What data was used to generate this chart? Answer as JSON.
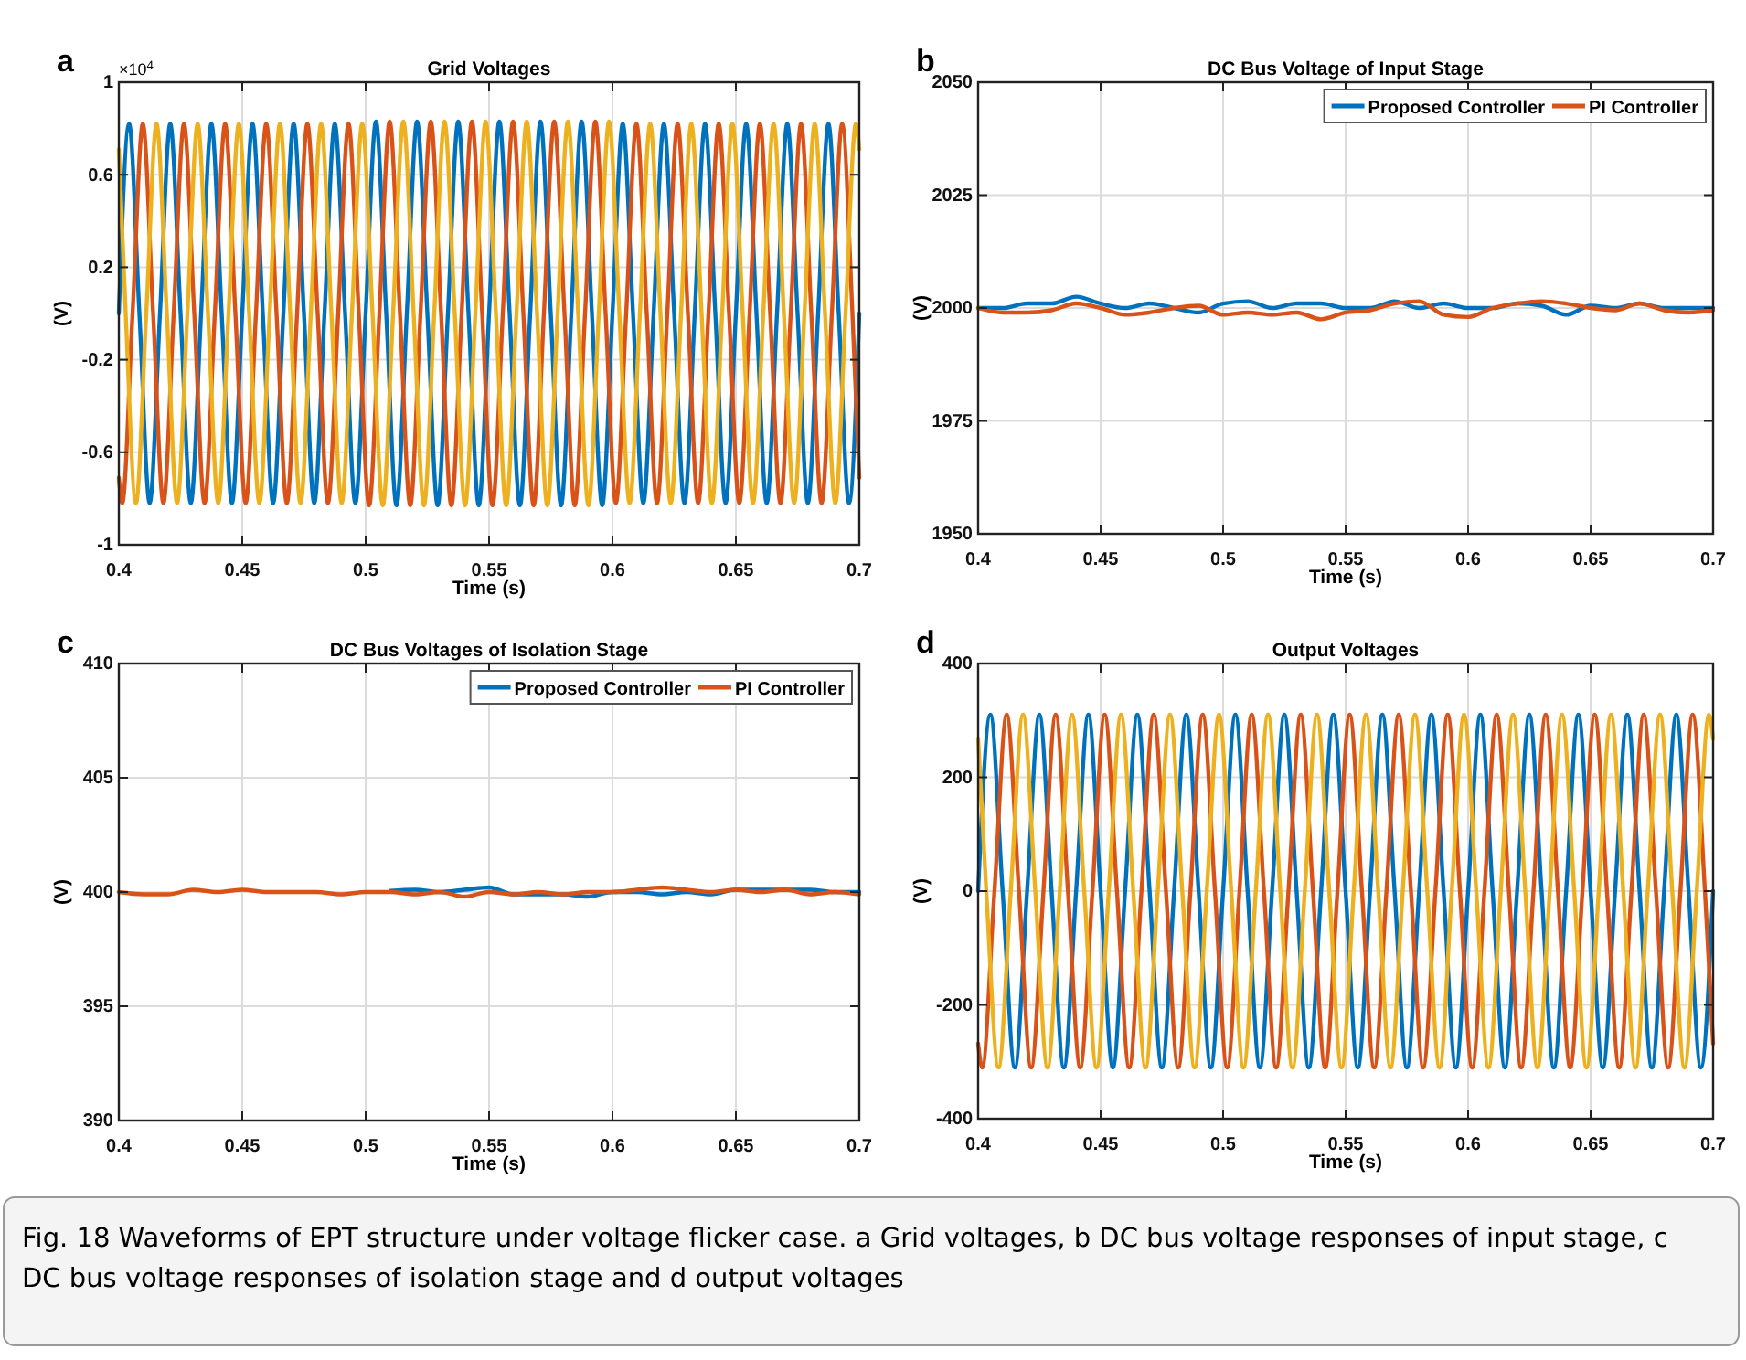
{
  "chart_data": [
    {
      "type": "line",
      "title": "Grid Voltages",
      "xlabel": "Time (s)",
      "ylabel": "(V)",
      "annotations": [
        "a",
        "×10$^{4}$"
      ],
      "xlim": [
        0.4,
        0.7
      ],
      "xticks": [
        0.4,
        0.45,
        0.5,
        0.55,
        0.6,
        0.65,
        0.7
      ],
      "ylim": [
        -1,
        1
      ],
      "yticks": [
        -1,
        -0.6,
        -0.2,
        0.2,
        0.6,
        1
      ],
      "grid": true,
      "series": [
        {
          "color": "#0072bd",
          "x": [
            0.4,
            0.40417,
            0.40833,
            0.4125,
            0.41667,
            0.42083,
            0.425,
            0.42917,
            0.43333,
            0.4375,
            0.44167,
            0.44583,
            0.45,
            0.45417,
            0.45833,
            0.4625,
            0.46667,
            0.47083,
            0.475,
            0.47917,
            0.48333,
            0.4875,
            0.49167,
            0.49583,
            0.5,
            0.50417,
            0.50833,
            0.5125,
            0.51667,
            0.52083,
            0.525,
            0.52917,
            0.53333,
            0.5375,
            0.54167,
            0.54583,
            0.55,
            0.55417,
            0.55833,
            0.5625,
            0.56667,
            0.57083,
            0.575,
            0.57917,
            0.58333,
            0.5875,
            0.59167,
            0.59583,
            0.6,
            0.60417,
            0.60833,
            0.6125,
            0.61667,
            0.62083,
            0.625,
            0.62917,
            0.63333,
            0.6375,
            0.64167,
            0.64583,
            0.65,
            0.65417,
            0.65833,
            0.6625,
            0.66667,
            0.67083,
            0.675,
            0.67917,
            0.68333,
            0.6875,
            0.69167,
            0.69583,
            0.7
          ],
          "values": [
            0,
            0.82,
            0,
            -0.82,
            0,
            0.82,
            0,
            -0.82,
            0,
            0.82,
            0,
            -0.82,
            0,
            0.82,
            0,
            -0.82,
            0,
            0.82,
            0,
            -0.82,
            0,
            0.82,
            0,
            -0.82,
            0,
            0.83,
            0,
            -0.83,
            0,
            0.83,
            0,
            -0.83,
            0,
            0.83,
            0,
            -0.83,
            0,
            0.83,
            0,
            -0.83,
            0,
            0.83,
            0,
            -0.83,
            0,
            0.83,
            0,
            -0.83,
            0,
            0.82,
            0,
            -0.82,
            0,
            0.82,
            0,
            -0.82,
            0,
            0.82,
            0,
            -0.82,
            0,
            0.82,
            0,
            -0.82,
            0,
            0.82,
            0,
            -0.82,
            0,
            0.82,
            0,
            -0.82,
            0
          ]
        },
        {
          "color": "#d95319",
          "x": [
            0.4,
            0.40139,
            0.40556,
            0.40972,
            0.41389,
            0.41806,
            0.42222,
            0.42639,
            0.43056,
            0.43472,
            0.43889,
            0.44306,
            0.44722,
            0.45139,
            0.45556,
            0.45972,
            0.46389,
            0.46806,
            0.47222,
            0.47639,
            0.48056,
            0.48472,
            0.48889,
            0.49306,
            0.49722,
            0.50139,
            0.50556,
            0.50972,
            0.51389,
            0.51806,
            0.52222,
            0.52639,
            0.53056,
            0.53472,
            0.53889,
            0.54306,
            0.54722,
            0.55139,
            0.55556,
            0.55972,
            0.56389,
            0.56806,
            0.57222,
            0.57639,
            0.58056,
            0.58472,
            0.58889,
            0.59306,
            0.59722,
            0.60139,
            0.60556,
            0.60972,
            0.61389,
            0.61806,
            0.62222,
            0.62639,
            0.63056,
            0.63472,
            0.63889,
            0.64306,
            0.64722,
            0.65139,
            0.65556,
            0.65972,
            0.66389,
            0.66806,
            0.67222,
            0.67639,
            0.68056,
            0.68472,
            0.68889,
            0.69306,
            0.69722,
            0.7
          ],
          "values": [
            -0.71,
            -0.82,
            0,
            0.82,
            0,
            -0.82,
            0,
            0.82,
            0,
            -0.82,
            0,
            0.82,
            0,
            -0.82,
            0,
            0.82,
            0,
            -0.82,
            0,
            0.82,
            0,
            -0.82,
            0,
            0.82,
            0,
            -0.83,
            0,
            0.83,
            0,
            -0.83,
            0,
            0.83,
            0,
            -0.83,
            0,
            0.83,
            0,
            -0.83,
            0,
            0.83,
            0,
            -0.83,
            0,
            0.83,
            0,
            -0.83,
            0,
            0.83,
            0,
            -0.82,
            0,
            0.82,
            0,
            -0.82,
            0,
            0.82,
            0,
            -0.82,
            0,
            0.82,
            0,
            -0.82,
            0,
            0.82,
            0,
            -0.82,
            0,
            0.82,
            0,
            -0.82,
            0,
            0.82,
            0,
            -0.71
          ]
        },
        {
          "color": "#edb120",
          "x": [
            0.4,
            0.40278,
            0.40694,
            0.41111,
            0.41528,
            0.41944,
            0.42361,
            0.42778,
            0.43194,
            0.43611,
            0.44028,
            0.44444,
            0.44861,
            0.45278,
            0.45694,
            0.46111,
            0.46528,
            0.46944,
            0.47361,
            0.47778,
            0.48194,
            0.48611,
            0.49028,
            0.49444,
            0.49861,
            0.50278,
            0.50694,
            0.51111,
            0.51528,
            0.51944,
            0.52361,
            0.52778,
            0.53194,
            0.53611,
            0.54028,
            0.54444,
            0.54861,
            0.55278,
            0.55694,
            0.56111,
            0.56528,
            0.56944,
            0.57361,
            0.57778,
            0.58194,
            0.58611,
            0.59028,
            0.59444,
            0.59861,
            0.60278,
            0.60694,
            0.61111,
            0.61528,
            0.61944,
            0.62361,
            0.62778,
            0.63194,
            0.63611,
            0.64028,
            0.64444,
            0.64861,
            0.65278,
            0.65694,
            0.66111,
            0.66528,
            0.66944,
            0.67361,
            0.67778,
            0.68194,
            0.68611,
            0.69028,
            0.69444,
            0.69861,
            0.7
          ],
          "values": [
            0.71,
            0,
            -0.82,
            0,
            0.82,
            0,
            -0.82,
            0,
            0.82,
            0,
            -0.82,
            0,
            0.82,
            0,
            -0.82,
            0,
            0.82,
            0,
            -0.82,
            0,
            0.82,
            0,
            -0.82,
            0,
            0.82,
            0,
            -0.83,
            0,
            0.83,
            0,
            -0.83,
            0,
            0.83,
            0,
            -0.83,
            0,
            0.83,
            0,
            -0.83,
            0,
            0.83,
            0,
            -0.83,
            0,
            0.83,
            0,
            -0.83,
            0,
            0.83,
            0,
            -0.82,
            0,
            0.82,
            0,
            -0.82,
            0,
            0.82,
            0,
            -0.82,
            0,
            0.82,
            0,
            -0.82,
            0,
            0.82,
            0,
            -0.82,
            0,
            0.82,
            0,
            -0.82,
            0,
            0.82,
            0.71
          ]
        }
      ]
    },
    {
      "type": "line",
      "title": "DC Bus Voltage of Input Stage",
      "xlabel": "Time (s)",
      "ylabel": "(V)",
      "annotations": [
        "b"
      ],
      "xlim": [
        0.4,
        0.7
      ],
      "xticks": [
        0.4,
        0.45,
        0.5,
        0.55,
        0.6,
        0.65,
        0.7
      ],
      "ylim": [
        1950,
        2050
      ],
      "yticks": [
        1950,
        1975,
        2000,
        2025,
        2050
      ],
      "grid": true,
      "legend": "top right",
      "x": [
        0.4,
        0.41,
        0.42,
        0.43,
        0.44,
        0.45,
        0.46,
        0.47,
        0.48,
        0.49,
        0.5,
        0.51,
        0.52,
        0.53,
        0.54,
        0.55,
        0.56,
        0.57,
        0.58,
        0.59,
        0.6,
        0.61,
        0.62,
        0.63,
        0.64,
        0.65,
        0.66,
        0.67,
        0.68,
        0.69,
        0.7
      ],
      "series": [
        {
          "name": "Proposed Controller",
          "color": "#0072bd",
          "values": [
            2000,
            2000,
            2001,
            2001,
            2002.5,
            2001,
            2000,
            2001,
            2000,
            1999,
            2001,
            2001.5,
            2000,
            2001,
            2001,
            2000,
            2000,
            2001.5,
            2000,
            2001,
            2000,
            2000,
            2001,
            2000.5,
            1998.5,
            2000.5,
            2000,
            2001,
            2000,
            2000,
            2000
          ]
        },
        {
          "name": "PI Controller",
          "color": "#d95319",
          "values": [
            2000,
            1999,
            1999,
            1999.5,
            2001,
            2000,
            1998.5,
            1999,
            2000,
            2000.5,
            1998.5,
            1999,
            1998.5,
            1999,
            1997.5,
            1999,
            1999.5,
            2001,
            2001.5,
            1998.5,
            1998,
            2000,
            2001,
            2001.5,
            2001,
            2000,
            1999.5,
            2001,
            1999.5,
            1999,
            1999.5
          ]
        }
      ]
    },
    {
      "type": "line",
      "title": "DC Bus Voltages of Isolation Stage",
      "xlabel": "Time (s)",
      "ylabel": "(V)",
      "annotations": [
        "c"
      ],
      "xlim": [
        0.4,
        0.7
      ],
      "xticks": [
        0.4,
        0.45,
        0.5,
        0.55,
        0.6,
        0.65,
        0.7
      ],
      "ylim": [
        390,
        410
      ],
      "yticks": [
        390,
        395,
        400,
        405,
        410
      ],
      "grid": true,
      "legend": "top right",
      "x": [
        0.4,
        0.41,
        0.42,
        0.43,
        0.44,
        0.45,
        0.46,
        0.47,
        0.48,
        0.49,
        0.5,
        0.51,
        0.52,
        0.53,
        0.54,
        0.55,
        0.56,
        0.57,
        0.58,
        0.59,
        0.6,
        0.61,
        0.62,
        0.63,
        0.64,
        0.65,
        0.66,
        0.67,
        0.68,
        0.69,
        0.7
      ],
      "series": [
        {
          "name": "Proposed Controller",
          "color": "#0072bd",
          "values": [
            null,
            null,
            null,
            null,
            null,
            null,
            null,
            null,
            null,
            null,
            null,
            400.05,
            400.1,
            400,
            400.1,
            400.2,
            399.9,
            null,
            399.9,
            399.8,
            400,
            400,
            399.9,
            400,
            399.9,
            400.1,
            null,
            400.1,
            400.1,
            400,
            400
          ]
        },
        {
          "name": "PI Controller",
          "color": "#d95319",
          "values": [
            400,
            399.9,
            399.9,
            400.1,
            400,
            400.1,
            400,
            400,
            400,
            399.9,
            400,
            400,
            399.9,
            400,
            399.8,
            400,
            399.9,
            400,
            399.9,
            400,
            400,
            400.1,
            400.2,
            400.1,
            400,
            400.1,
            400,
            400.1,
            399.9,
            400,
            399.9
          ]
        }
      ]
    },
    {
      "type": "line",
      "title": "Output Voltages",
      "xlabel": "Time (s)",
      "ylabel": "(V)",
      "annotations": [
        "d"
      ],
      "xlim": [
        0.4,
        0.7
      ],
      "xticks": [
        0.4,
        0.45,
        0.5,
        0.55,
        0.6,
        0.65,
        0.7
      ],
      "ylim": [
        -400,
        400
      ],
      "yticks": [
        -400,
        -200,
        0,
        200,
        400
      ],
      "grid": true,
      "series": [
        {
          "color": "#0072bd",
          "x": [
            0.4,
            0.405,
            0.41,
            0.415,
            0.42,
            0.425,
            0.43,
            0.435,
            0.44,
            0.445,
            0.45,
            0.455,
            0.46,
            0.465,
            0.47,
            0.475,
            0.48,
            0.485,
            0.49,
            0.495,
            0.5,
            0.505,
            0.51,
            0.515,
            0.52,
            0.525,
            0.53,
            0.535,
            0.54,
            0.545,
            0.55,
            0.555,
            0.56,
            0.565,
            0.57,
            0.575,
            0.58,
            0.585,
            0.59,
            0.595,
            0.6,
            0.605,
            0.61,
            0.615,
            0.62,
            0.625,
            0.63,
            0.635,
            0.64,
            0.645,
            0.65,
            0.655,
            0.66,
            0.665,
            0.67,
            0.675,
            0.68,
            0.685,
            0.69,
            0.695,
            0.7
          ],
          "values": [
            0,
            310,
            0,
            -310,
            0,
            310,
            0,
            -310,
            0,
            310,
            0,
            -310,
            0,
            310,
            0,
            -310,
            0,
            310,
            0,
            -310,
            0,
            310,
            0,
            -310,
            0,
            310,
            0,
            -310,
            0,
            310,
            0,
            -310,
            0,
            310,
            0,
            -310,
            0,
            310,
            0,
            -310,
            0,
            310,
            0,
            -310,
            0,
            310,
            0,
            -310,
            0,
            310,
            0,
            -310,
            0,
            310,
            0,
            -310,
            0,
            310,
            0,
            -310,
            0
          ]
        },
        {
          "color": "#d95319",
          "x": [
            0.4,
            0.40167,
            0.40667,
            0.41167,
            0.41667,
            0.42167,
            0.42667,
            0.43167,
            0.43667,
            0.44167,
            0.44667,
            0.45167,
            0.45667,
            0.46167,
            0.46667,
            0.47167,
            0.47667,
            0.48167,
            0.48667,
            0.49167,
            0.49667,
            0.50167,
            0.50667,
            0.51167,
            0.51667,
            0.52167,
            0.52667,
            0.53167,
            0.53667,
            0.54167,
            0.54667,
            0.55167,
            0.55667,
            0.56167,
            0.56667,
            0.57167,
            0.57667,
            0.58167,
            0.58667,
            0.59167,
            0.59667,
            0.60167,
            0.60667,
            0.61167,
            0.61667,
            0.62167,
            0.62667,
            0.63167,
            0.63667,
            0.64167,
            0.64667,
            0.65167,
            0.65667,
            0.66167,
            0.66667,
            0.67167,
            0.67667,
            0.68167,
            0.68667,
            0.69167,
            0.69667,
            0.7
          ],
          "values": [
            -268,
            -310,
            0,
            310,
            0,
            -310,
            0,
            310,
            0,
            -310,
            0,
            310,
            0,
            -310,
            0,
            310,
            0,
            -310,
            0,
            310,
            0,
            -310,
            0,
            310,
            0,
            -310,
            0,
            310,
            0,
            -310,
            0,
            310,
            0,
            -310,
            0,
            310,
            0,
            -310,
            0,
            310,
            0,
            -310,
            0,
            310,
            0,
            -310,
            0,
            310,
            0,
            -310,
            0,
            310,
            0,
            -310,
            0,
            310,
            0,
            -310,
            0,
            310,
            0,
            -268
          ]
        },
        {
          "color": "#edb120",
          "x": [
            0.4,
            0.40333,
            0.40833,
            0.41333,
            0.41833,
            0.42333,
            0.42833,
            0.43333,
            0.43833,
            0.44333,
            0.44833,
            0.45333,
            0.45833,
            0.46333,
            0.46833,
            0.47333,
            0.47833,
            0.48333,
            0.48833,
            0.49333,
            0.49833,
            0.50333,
            0.50833,
            0.51333,
            0.51833,
            0.52333,
            0.52833,
            0.53333,
            0.53833,
            0.54333,
            0.54833,
            0.55333,
            0.55833,
            0.56333,
            0.56833,
            0.57333,
            0.57833,
            0.58333,
            0.58833,
            0.59333,
            0.59833,
            0.60333,
            0.60833,
            0.61333,
            0.61833,
            0.62333,
            0.62833,
            0.63333,
            0.63833,
            0.64333,
            0.64833,
            0.65333,
            0.65833,
            0.66333,
            0.66833,
            0.67333,
            0.67833,
            0.68333,
            0.68833,
            0.69333,
            0.69833,
            0.7
          ],
          "values": [
            268,
            0,
            -310,
            0,
            310,
            0,
            -310,
            0,
            310,
            0,
            -310,
            0,
            310,
            0,
            -310,
            0,
            310,
            0,
            -310,
            0,
            310,
            0,
            -310,
            0,
            310,
            0,
            -310,
            0,
            310,
            0,
            -310,
            0,
            310,
            0,
            -310,
            0,
            310,
            0,
            -310,
            0,
            310,
            0,
            -310,
            0,
            310,
            0,
            -310,
            0,
            310,
            0,
            -310,
            0,
            310,
            0,
            -310,
            0,
            310,
            0,
            -310,
            0,
            310,
            268
          ]
        }
      ]
    },
    {
      "type": "other",
      "annotations": [
        "Fig. 18  Waveforms of EPT structure under voltage flicker case. a Grid voltages, b DC bus voltage responses of input stage, c DC bus voltage responses of isolation stage and d output voltages"
      ]
    }
  ]
}
